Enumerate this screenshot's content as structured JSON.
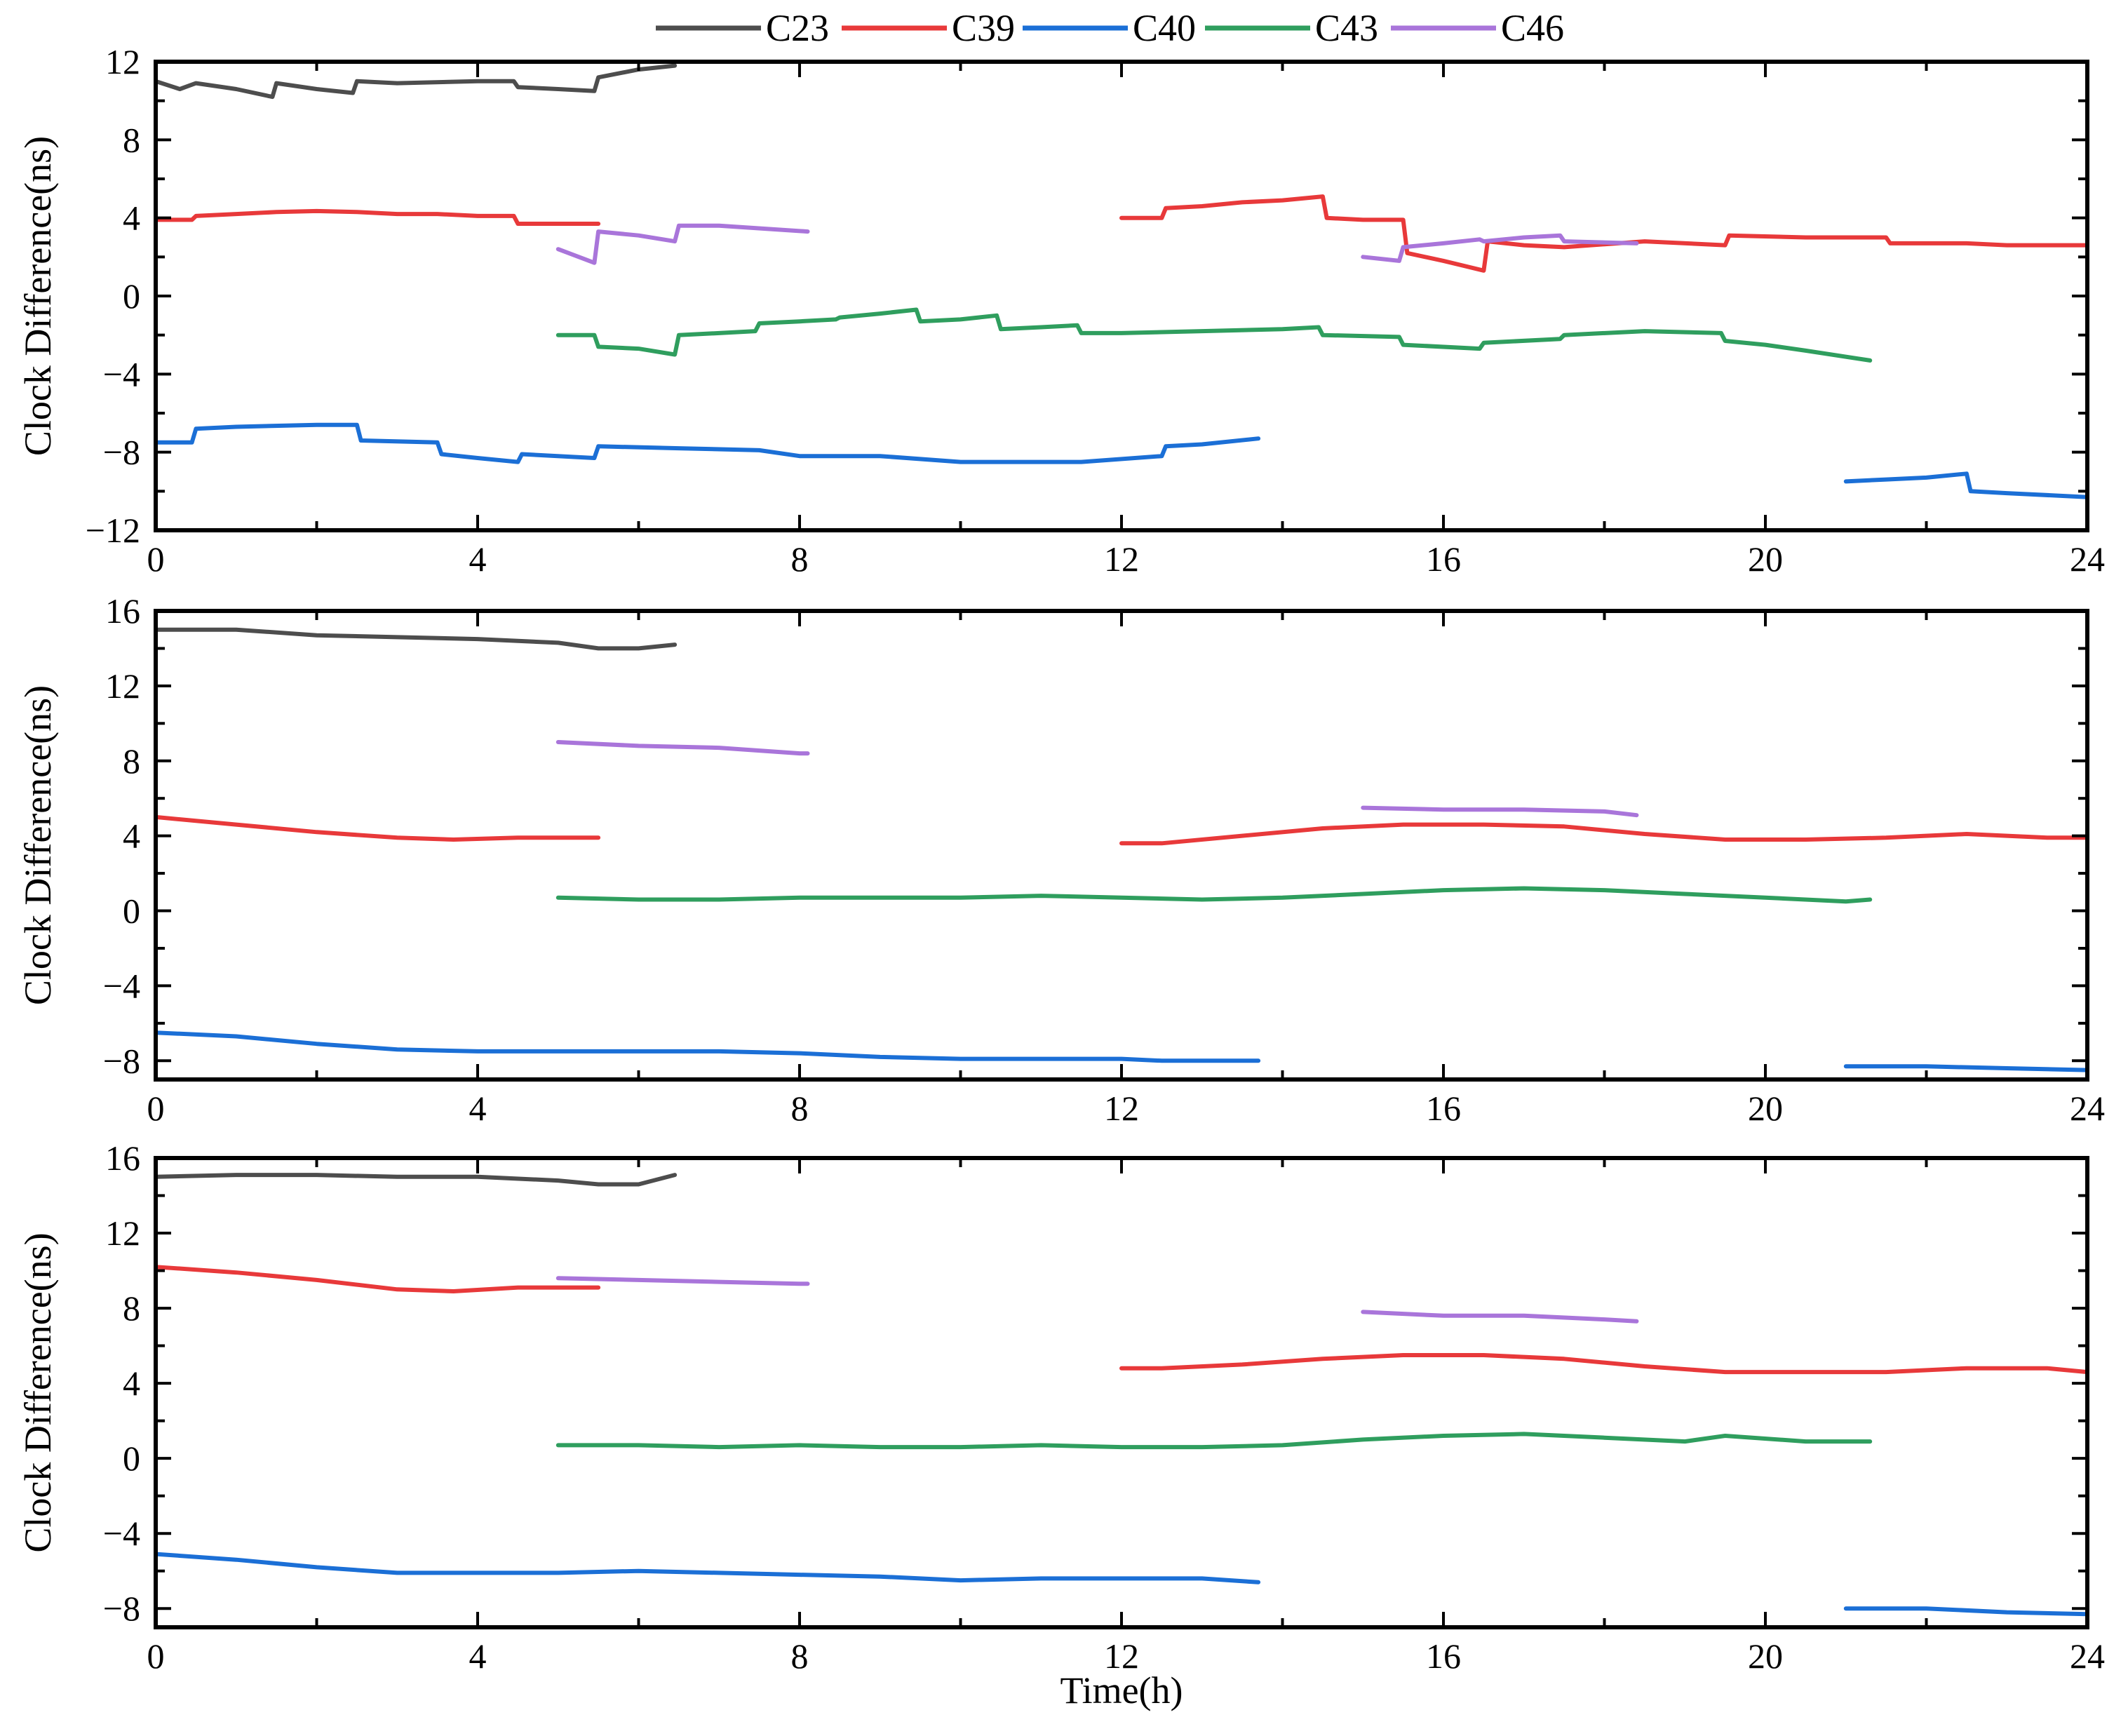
{
  "colors": {
    "C23": "#4d4d4d",
    "C39": "#e8393a",
    "C40": "#1b6fd6",
    "C43": "#2f9e5e",
    "C46": "#a975da"
  },
  "legend": [
    "C23",
    "C39",
    "C40",
    "C43",
    "C46"
  ],
  "chart_data": [
    {
      "type": "line",
      "xlabel": "",
      "ylabel": "Clock Difference(ns)",
      "xlim": [
        0,
        24
      ],
      "ylim": [
        -12,
        12
      ],
      "xticks": [
        "0",
        "4",
        "8",
        "12",
        "16",
        "20",
        "24"
      ],
      "yticks": [
        "-12",
        "-8",
        "-4",
        "0",
        "4",
        "8",
        "12"
      ],
      "series": [
        {
          "name": "C23",
          "x": [
            0,
            0.3,
            0.5,
            1.0,
            1.45,
            1.5,
            2.0,
            2.45,
            2.5,
            3.0,
            4.0,
            4.45,
            4.5,
            5.0,
            5.45,
            5.5,
            6.0,
            6.45
          ],
          "y": [
            11.0,
            10.6,
            10.9,
            10.6,
            10.2,
            10.9,
            10.6,
            10.4,
            11.0,
            10.9,
            11.0,
            11.0,
            10.7,
            10.6,
            10.5,
            11.2,
            11.6,
            11.8
          ]
        },
        {
          "name": "C39",
          "x": [
            0,
            0.45,
            0.5,
            1.0,
            1.5,
            2.0,
            2.5,
            3.0,
            3.5,
            4.0,
            4.45,
            4.5,
            5.0,
            5.5
          ],
          "y": [
            3.9,
            3.9,
            4.1,
            4.2,
            4.3,
            4.35,
            4.3,
            4.2,
            4.2,
            4.1,
            4.1,
            3.7,
            3.7,
            3.7
          ]
        },
        {
          "name": "C39",
          "x": [
            12.0,
            12.5,
            12.55,
            13.0,
            13.5,
            14.0,
            14.5,
            14.55,
            15.0,
            15.5,
            15.55,
            16.0,
            16.5,
            16.55,
            17.0,
            17.5,
            18.5,
            19.5,
            19.55,
            20.5,
            21.5,
            21.55,
            22.5,
            23.0,
            24.0
          ],
          "y": [
            4.0,
            4.0,
            4.5,
            4.6,
            4.8,
            4.9,
            5.1,
            4.0,
            3.9,
            3.9,
            2.2,
            1.8,
            1.3,
            2.8,
            2.6,
            2.5,
            2.8,
            2.6,
            3.1,
            3.0,
            3.0,
            2.7,
            2.7,
            2.6,
            2.6
          ]
        },
        {
          "name": "C40",
          "x": [
            0,
            0.45,
            0.5,
            1.0,
            2.0,
            2.5,
            2.55,
            3.5,
            3.55,
            4.0,
            4.5,
            4.55,
            5.45,
            5.5,
            6.5,
            7.5,
            8.0,
            9.0,
            10.0,
            11.0,
            11.5,
            12.5,
            12.55,
            13.0,
            13.7
          ],
          "y": [
            -7.5,
            -7.5,
            -6.8,
            -6.7,
            -6.6,
            -6.6,
            -7.4,
            -7.5,
            -8.1,
            -8.3,
            -8.5,
            -8.1,
            -8.3,
            -7.7,
            -7.8,
            -7.9,
            -8.2,
            -8.2,
            -8.5,
            -8.5,
            -8.5,
            -8.2,
            -7.7,
            -7.6,
            -7.3
          ]
        },
        {
          "name": "C40",
          "x": [
            21.0,
            21.5,
            22.0,
            22.5,
            22.55,
            23.0,
            24.0
          ],
          "y": [
            -9.5,
            -9.4,
            -9.3,
            -9.1,
            -10.0,
            -10.1,
            -10.3
          ]
        },
        {
          "name": "C43",
          "x": [
            5.0,
            5.45,
            5.5,
            6.0,
            6.45,
            6.5,
            7.0,
            7.45,
            7.5,
            8.0,
            8.45,
            8.5,
            9.0,
            9.45,
            9.5,
            10.0,
            10.45,
            10.5,
            11.0,
            11.45,
            11.5,
            12.0,
            13.0,
            14.0,
            14.45,
            14.5,
            15.45,
            15.5,
            16.45,
            16.5,
            17.45,
            17.5,
            18.5,
            19.45,
            19.5,
            20.0,
            20.5,
            21.3
          ],
          "y": [
            -2.0,
            -2.0,
            -2.6,
            -2.7,
            -3.0,
            -2.0,
            -1.9,
            -1.8,
            -1.4,
            -1.3,
            -1.2,
            -1.1,
            -0.9,
            -0.7,
            -1.3,
            -1.2,
            -1.0,
            -1.7,
            -1.6,
            -1.5,
            -1.9,
            -1.9,
            -1.8,
            -1.7,
            -1.6,
            -2.0,
            -2.1,
            -2.5,
            -2.7,
            -2.4,
            -2.2,
            -2.0,
            -1.8,
            -1.9,
            -2.3,
            -2.5,
            -2.8,
            -3.3
          ]
        },
        {
          "name": "C46",
          "x": [
            5.0,
            5.45,
            5.5,
            6.0,
            6.45,
            6.5,
            7.0,
            8.1
          ],
          "y": [
            2.4,
            1.7,
            3.3,
            3.1,
            2.8,
            3.6,
            3.6,
            3.3
          ]
        },
        {
          "name": "C46",
          "x": [
            15.0,
            15.45,
            15.5,
            16.0,
            16.45,
            16.5,
            17.0,
            17.45,
            17.5,
            18.4
          ],
          "y": [
            2.0,
            1.8,
            2.5,
            2.7,
            2.9,
            2.8,
            3.0,
            3.1,
            2.8,
            2.7
          ]
        }
      ]
    },
    {
      "type": "line",
      "xlabel": "",
      "ylabel": "Clock Difference(ns)",
      "xlim": [
        0,
        24
      ],
      "ylim": [
        -9,
        16
      ],
      "xticks": [
        "0",
        "4",
        "8",
        "12",
        "16",
        "20",
        "24"
      ],
      "yticks": [
        "-8",
        "-4",
        "0",
        "4",
        "8",
        "12",
        "16"
      ],
      "series": [
        {
          "name": "C23",
          "x": [
            0,
            1.0,
            2.0,
            3.0,
            4.0,
            5.0,
            5.5,
            6.0,
            6.45
          ],
          "y": [
            15.0,
            15.0,
            14.7,
            14.6,
            14.5,
            14.3,
            14.0,
            14.0,
            14.2
          ]
        },
        {
          "name": "C39",
          "x": [
            0,
            1.0,
            2.0,
            3.0,
            3.7,
            4.5,
            5.0,
            5.5
          ],
          "y": [
            5.0,
            4.6,
            4.2,
            3.9,
            3.8,
            3.9,
            3.9,
            3.9
          ]
        },
        {
          "name": "C39",
          "x": [
            12.0,
            12.5,
            13.5,
            14.5,
            15.5,
            16.5,
            17.5,
            18.5,
            19.5,
            20.5,
            21.5,
            22.5,
            23.5,
            24.0
          ],
          "y": [
            3.6,
            3.6,
            4.0,
            4.4,
            4.6,
            4.6,
            4.5,
            4.1,
            3.8,
            3.8,
            3.9,
            4.1,
            3.9,
            3.9
          ]
        },
        {
          "name": "C40",
          "x": [
            0,
            1.0,
            2.0,
            3.0,
            4.0,
            5.0,
            6.0,
            7.0,
            8.0,
            9.0,
            10.0,
            11.0,
            12.0,
            12.5,
            13.0,
            13.7
          ],
          "y": [
            -6.5,
            -6.7,
            -7.1,
            -7.4,
            -7.5,
            -7.5,
            -7.5,
            -7.5,
            -7.6,
            -7.8,
            -7.9,
            -7.9,
            -7.9,
            -8.0,
            -8.0,
            -8.0
          ]
        },
        {
          "name": "C40",
          "x": [
            21.0,
            22.0,
            23.0,
            24.0
          ],
          "y": [
            -8.3,
            -8.3,
            -8.4,
            -8.5
          ]
        },
        {
          "name": "C43",
          "x": [
            5.0,
            6.0,
            7.0,
            8.0,
            9.0,
            10.0,
            11.0,
            12.0,
            13.0,
            14.0,
            15.0,
            16.0,
            17.0,
            18.0,
            19.0,
            20.0,
            21.0,
            21.3
          ],
          "y": [
            0.7,
            0.6,
            0.6,
            0.7,
            0.7,
            0.7,
            0.8,
            0.7,
            0.6,
            0.7,
            0.9,
            1.1,
            1.2,
            1.1,
            0.9,
            0.7,
            0.5,
            0.6
          ]
        },
        {
          "name": "C46",
          "x": [
            5.0,
            6.0,
            7.0,
            8.0,
            8.1
          ],
          "y": [
            9.0,
            8.8,
            8.7,
            8.4,
            8.4
          ]
        },
        {
          "name": "C46",
          "x": [
            15.0,
            16.0,
            17.0,
            18.0,
            18.4
          ],
          "y": [
            5.5,
            5.4,
            5.4,
            5.3,
            5.1
          ]
        }
      ]
    },
    {
      "type": "line",
      "xlabel": "Time(h)",
      "ylabel": "Clock Difference(ns)",
      "xlim": [
        0,
        24
      ],
      "ylim": [
        -9,
        16
      ],
      "xticks": [
        "0",
        "4",
        "8",
        "12",
        "16",
        "20",
        "24"
      ],
      "yticks": [
        "-8",
        "-4",
        "0",
        "4",
        "8",
        "12",
        "16"
      ],
      "series": [
        {
          "name": "C23",
          "x": [
            0,
            1.0,
            2.0,
            3.0,
            4.0,
            5.0,
            5.5,
            6.0,
            6.45
          ],
          "y": [
            15.0,
            15.1,
            15.1,
            15.0,
            15.0,
            14.8,
            14.6,
            14.6,
            15.1
          ]
        },
        {
          "name": "C39",
          "x": [
            0,
            1.0,
            2.0,
            3.0,
            3.7,
            4.5,
            5.5
          ],
          "y": [
            10.2,
            9.9,
            9.5,
            9.0,
            8.9,
            9.1,
            9.1
          ]
        },
        {
          "name": "C39",
          "x": [
            12.0,
            12.5,
            13.5,
            14.5,
            15.5,
            16.5,
            17.5,
            18.5,
            19.5,
            20.5,
            21.5,
            22.5,
            23.5,
            24.0
          ],
          "y": [
            4.8,
            4.8,
            5.0,
            5.3,
            5.5,
            5.5,
            5.3,
            4.9,
            4.6,
            4.6,
            4.6,
            4.8,
            4.8,
            4.6
          ]
        },
        {
          "name": "C40",
          "x": [
            0,
            1.0,
            2.0,
            3.0,
            4.0,
            5.0,
            6.0,
            7.0,
            8.0,
            9.0,
            10.0,
            11.0,
            12.0,
            13.0,
            13.7
          ],
          "y": [
            -5.1,
            -5.4,
            -5.8,
            -6.1,
            -6.1,
            -6.1,
            -6.0,
            -6.1,
            -6.2,
            -6.3,
            -6.5,
            -6.4,
            -6.4,
            -6.4,
            -6.6
          ]
        },
        {
          "name": "C40",
          "x": [
            21.0,
            22.0,
            23.0,
            24.0
          ],
          "y": [
            -8.0,
            -8.0,
            -8.2,
            -8.3
          ]
        },
        {
          "name": "C43",
          "x": [
            5.0,
            6.0,
            7.0,
            8.0,
            9.0,
            10.0,
            11.0,
            12.0,
            13.0,
            14.0,
            15.0,
            16.0,
            17.0,
            18.0,
            19.0,
            19.5,
            20.5,
            21.3
          ],
          "y": [
            0.7,
            0.7,
            0.6,
            0.7,
            0.6,
            0.6,
            0.7,
            0.6,
            0.6,
            0.7,
            1.0,
            1.2,
            1.3,
            1.1,
            0.9,
            1.2,
            0.9,
            0.9
          ]
        },
        {
          "name": "C46",
          "x": [
            5.0,
            6.0,
            7.0,
            8.0,
            8.1
          ],
          "y": [
            9.6,
            9.5,
            9.4,
            9.3,
            9.3
          ]
        },
        {
          "name": "C46",
          "x": [
            15.0,
            16.0,
            17.0,
            18.0,
            18.4
          ],
          "y": [
            7.8,
            7.6,
            7.6,
            7.4,
            7.3
          ]
        }
      ]
    }
  ]
}
